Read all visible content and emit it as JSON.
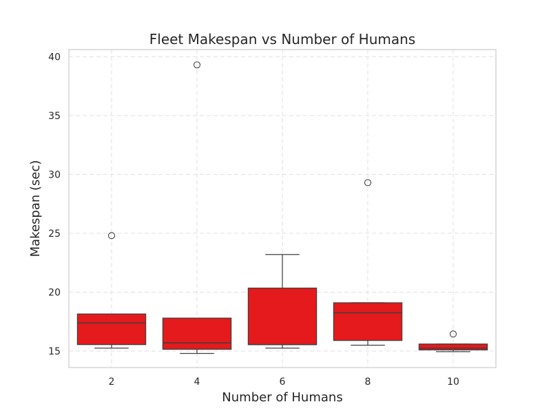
{
  "chart_data": {
    "type": "box",
    "title": "Fleet Makespan vs Number of Humans",
    "xlabel": "Number of Humans",
    "ylabel": "Makespan (sec)",
    "categories": [
      "2",
      "4",
      "6",
      "8",
      "10"
    ],
    "ylim": [
      13.6,
      40.6
    ],
    "yticks": [
      15,
      20,
      25,
      30,
      35,
      40
    ],
    "grid": true,
    "box_color": "#e41a1c",
    "series": [
      {
        "category": "2",
        "whisker_low": 15.25,
        "q1": 15.55,
        "median": 17.4,
        "q3": 18.15,
        "whisker_high": 18.15,
        "outliers": [
          24.8
        ]
      },
      {
        "category": "4",
        "whisker_low": 14.8,
        "q1": 15.15,
        "median": 15.7,
        "q3": 17.8,
        "whisker_high": 17.8,
        "outliers": [
          39.3
        ]
      },
      {
        "category": "6",
        "whisker_low": 15.25,
        "q1": 15.55,
        "median": 15.55,
        "q3": 20.35,
        "whisker_high": 23.2,
        "outliers": []
      },
      {
        "category": "8",
        "whisker_low": 15.5,
        "q1": 15.9,
        "median": 18.25,
        "q3": 19.1,
        "whisker_high": 19.1,
        "outliers": [
          29.3
        ]
      },
      {
        "category": "10",
        "whisker_low": 14.95,
        "q1": 15.1,
        "median": 15.25,
        "q3": 15.6,
        "whisker_high": 15.6,
        "outliers": [
          16.45
        ]
      }
    ]
  }
}
